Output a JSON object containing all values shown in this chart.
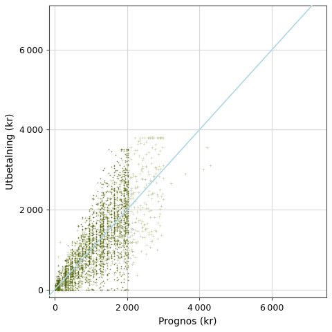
{
  "xlabel": "Prognos (kr)",
  "ylabel": "Utbetalning (kr)",
  "xlim": [
    -150,
    7500
  ],
  "ylim": [
    -200,
    7100
  ],
  "xticks": [
    0,
    2000,
    4000,
    6000
  ],
  "yticks": [
    0,
    2000,
    4000,
    6000
  ],
  "diagonal_color": "#add8e6",
  "scatter_dense_color": "#4d5e00",
  "scatter_sparse_color": "#aab87a",
  "background_color": "#ffffff",
  "grid_color": "#d8d8d8",
  "seed": 42
}
